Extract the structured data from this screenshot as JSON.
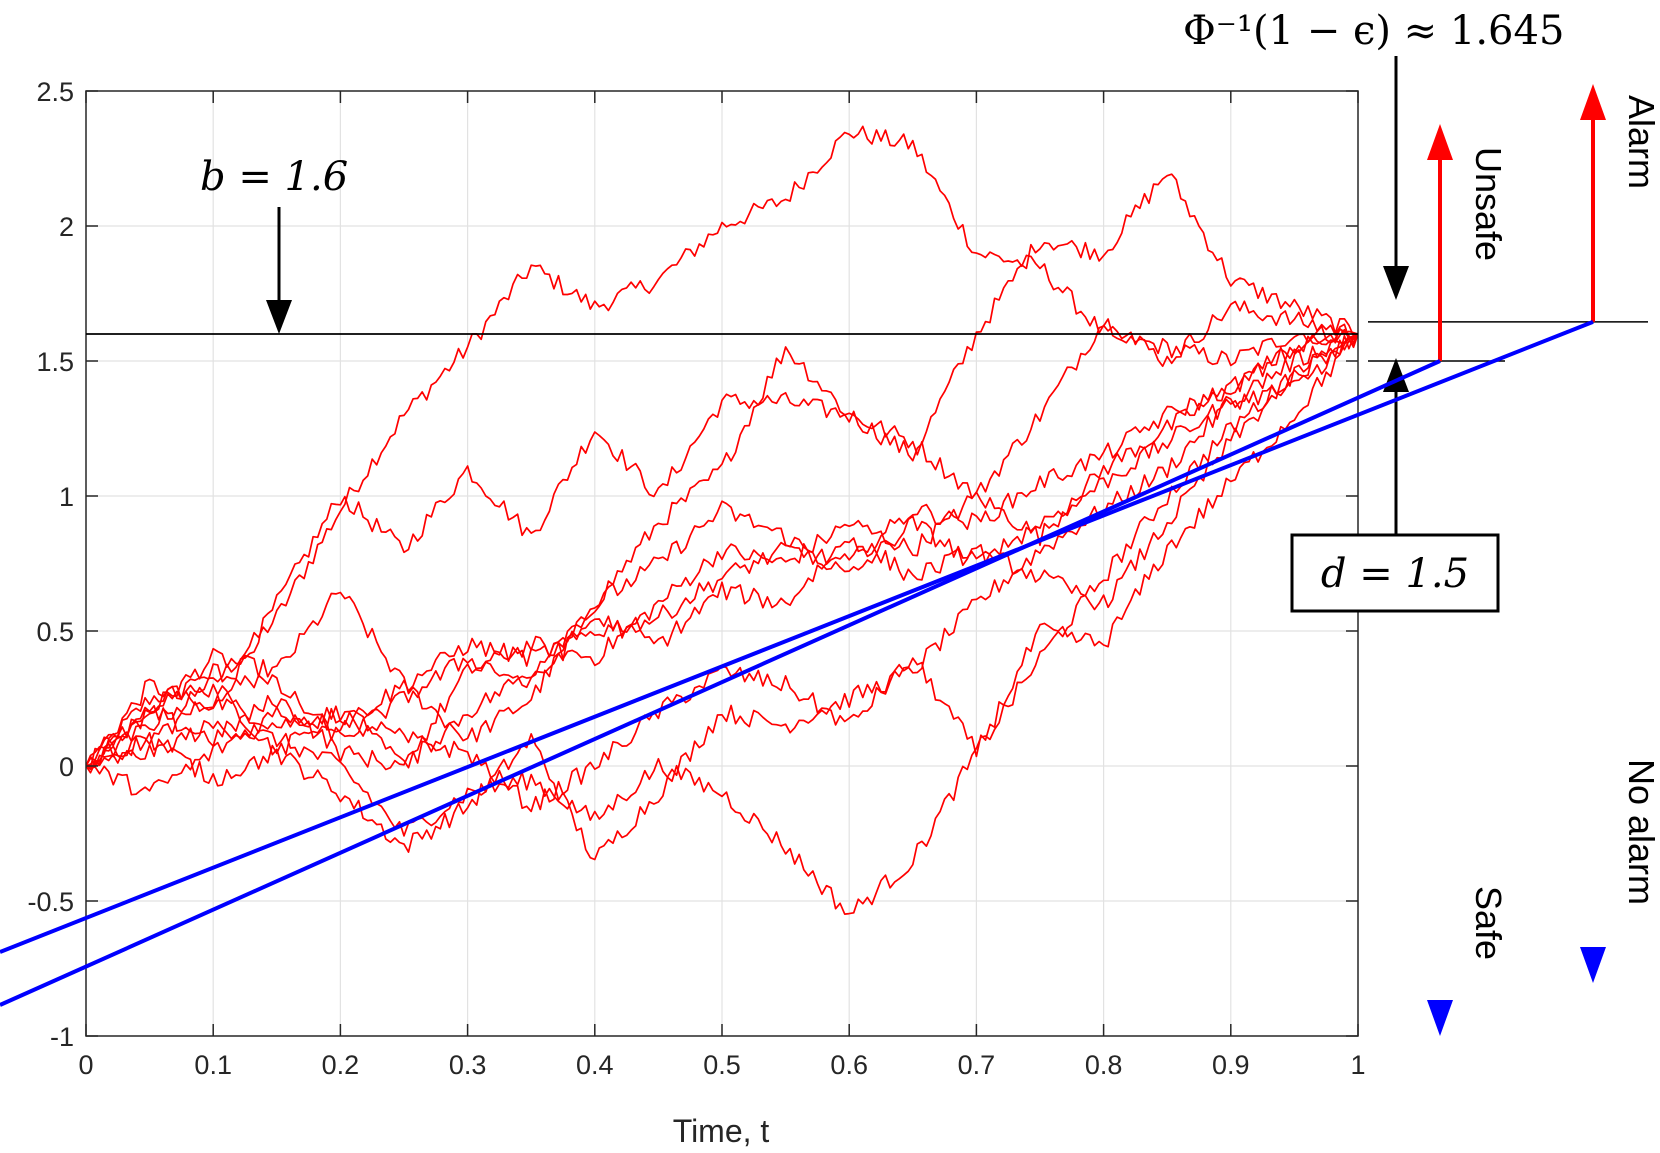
{
  "chart_data": {
    "type": "line",
    "title": "",
    "xlabel": "Time, t",
    "ylabel": "",
    "xlim": [
      0,
      1
    ],
    "ylim": [
      -1,
      2.5
    ],
    "grid": true,
    "x_ticks": [
      0,
      0.1,
      0.2,
      0.3,
      0.4,
      0.5,
      0.6,
      0.7,
      0.8,
      0.9,
      1
    ],
    "x_tick_labels": [
      "0",
      "0.1",
      "0.2",
      "0.3",
      "0.4",
      "0.5",
      "0.6",
      "0.7",
      "0.8",
      "0.9",
      "1"
    ],
    "y_ticks": [
      -1,
      -0.5,
      0,
      0.5,
      1,
      1.5,
      2,
      2.5
    ],
    "y_tick_labels": [
      "-1",
      "-0.5",
      "0",
      "0.5",
      "1",
      "1.5",
      "2",
      "2.5"
    ],
    "line_color": "#ff0000",
    "series": [
      {
        "x": [
          0,
          0.05,
          0.1,
          0.15,
          0.2,
          0.25,
          0.3,
          0.35,
          0.4,
          0.45,
          0.5,
          0.55,
          0.6,
          0.65,
          0.7,
          0.75,
          0.8,
          0.85,
          0.9,
          0.95,
          1
        ],
        "y": [
          0,
          0.25,
          0.3,
          0.55,
          0.95,
          1.3,
          1.55,
          1.85,
          1.7,
          1.8,
          2.0,
          2.1,
          2.35,
          2.3,
          1.9,
          1.85,
          1.6,
          1.55,
          1.5,
          1.6,
          1.6
        ]
      },
      {
        "x": [
          0,
          0.05,
          0.1,
          0.15,
          0.2,
          0.25,
          0.3,
          0.35,
          0.4,
          0.45,
          0.5,
          0.55,
          0.6,
          0.65,
          0.7,
          0.75,
          0.8,
          0.85,
          0.9,
          0.95,
          1
        ],
        "y": [
          0,
          0.3,
          0.2,
          0.6,
          1.0,
          0.8,
          1.1,
          0.85,
          1.25,
          1.0,
          1.35,
          1.35,
          1.3,
          1.15,
          1.6,
          1.95,
          1.9,
          2.2,
          1.8,
          1.7,
          1.6
        ]
      },
      {
        "x": [
          0,
          0.05,
          0.1,
          0.15,
          0.2,
          0.25,
          0.3,
          0.35,
          0.4,
          0.45,
          0.5,
          0.55,
          0.6,
          0.65,
          0.7,
          0.75,
          0.8,
          0.85,
          0.9,
          0.95,
          1
        ],
        "y": [
          0,
          0.2,
          0.4,
          0.35,
          0.65,
          0.3,
          0.1,
          0.25,
          0.6,
          0.9,
          1.1,
          1.55,
          1.3,
          1.2,
          1.0,
          1.3,
          1.65,
          1.5,
          1.7,
          1.65,
          1.6
        ]
      },
      {
        "x": [
          0,
          0.05,
          0.1,
          0.15,
          0.2,
          0.25,
          0.3,
          0.35,
          0.4,
          0.45,
          0.5,
          0.55,
          0.6,
          0.65,
          0.7,
          0.75,
          0.8,
          0.85,
          0.9,
          0.95,
          1
        ],
        "y": [
          0,
          0.1,
          0.25,
          0.15,
          0.2,
          0.0,
          0.35,
          0.45,
          0.4,
          0.6,
          0.8,
          0.75,
          0.9,
          0.8,
          1.0,
          0.85,
          1.1,
          1.25,
          1.4,
          1.55,
          1.6
        ]
      },
      {
        "x": [
          0,
          0.05,
          0.1,
          0.15,
          0.2,
          0.25,
          0.3,
          0.35,
          0.4,
          0.45,
          0.5,
          0.55,
          0.6,
          0.65,
          0.7,
          0.75,
          0.8,
          0.85,
          0.9,
          0.95,
          1
        ],
        "y": [
          0,
          0.15,
          0.3,
          0.05,
          -0.1,
          -0.3,
          -0.15,
          0.1,
          -0.35,
          -0.1,
          0.2,
          0.15,
          0.25,
          0.35,
          0.6,
          0.8,
          0.95,
          1.1,
          1.35,
          1.4,
          1.6
        ]
      },
      {
        "x": [
          0,
          0.05,
          0.1,
          0.15,
          0.2,
          0.25,
          0.3,
          0.35,
          0.4,
          0.45,
          0.5,
          0.55,
          0.6,
          0.65,
          0.7,
          0.75,
          0.8,
          0.85,
          0.9,
          0.95,
          1
        ],
        "y": [
          0,
          0.05,
          0.15,
          0.1,
          0.0,
          -0.25,
          -0.1,
          -0.05,
          -0.2,
          0.0,
          -0.1,
          -0.3,
          -0.55,
          -0.35,
          0.05,
          0.4,
          0.7,
          1.0,
          1.25,
          1.45,
          1.6
        ]
      },
      {
        "x": [
          0,
          0.05,
          0.1,
          0.15,
          0.2,
          0.25,
          0.3,
          0.35,
          0.4,
          0.45,
          0.5,
          0.55,
          0.6,
          0.65,
          0.7,
          0.75,
          0.8,
          0.85,
          0.9,
          0.95,
          1
        ],
        "y": [
          0,
          0.2,
          0.1,
          0.25,
          0.05,
          0.0,
          0.2,
          0.35,
          0.6,
          0.75,
          0.95,
          0.85,
          0.7,
          0.9,
          0.75,
          0.9,
          1.05,
          1.2,
          1.35,
          1.5,
          1.6
        ]
      },
      {
        "x": [
          0,
          0.05,
          0.1,
          0.15,
          0.2,
          0.25,
          0.3,
          0.35,
          0.4,
          0.45,
          0.5,
          0.55,
          0.6,
          0.65,
          0.7,
          0.75,
          0.8,
          0.85,
          0.9,
          0.95,
          1
        ],
        "y": [
          0,
          -0.1,
          0.05,
          0.2,
          0.15,
          0.3,
          0.45,
          0.4,
          0.5,
          0.55,
          0.7,
          0.8,
          0.75,
          0.95,
          0.9,
          1.05,
          1.15,
          1.3,
          1.4,
          1.55,
          1.6
        ]
      },
      {
        "x": [
          0,
          0.05,
          0.1,
          0.15,
          0.2,
          0.25,
          0.3,
          0.35,
          0.4,
          0.45,
          0.5,
          0.55,
          0.6,
          0.65,
          0.7,
          0.75,
          0.8,
          0.85,
          0.9,
          0.95,
          1
        ],
        "y": [
          0,
          0.1,
          -0.05,
          0.05,
          0.2,
          0.1,
          0.05,
          -0.15,
          0.0,
          0.2,
          0.35,
          0.3,
          0.15,
          0.4,
          0.05,
          0.5,
          0.45,
          0.8,
          1.05,
          1.3,
          1.6
        ]
      },
      {
        "x": [
          0,
          0.05,
          0.1,
          0.15,
          0.2,
          0.25,
          0.3,
          0.35,
          0.4,
          0.45,
          0.5,
          0.55,
          0.6,
          0.65,
          0.7,
          0.75,
          0.8,
          0.85,
          0.9,
          0.95,
          1
        ],
        "y": [
          0,
          0.2,
          0.35,
          0.3,
          0.1,
          0.25,
          0.4,
          0.3,
          0.55,
          0.45,
          0.65,
          0.6,
          0.85,
          0.7,
          0.8,
          0.7,
          0.6,
          0.9,
          1.2,
          1.45,
          1.6
        ]
      }
    ],
    "reference_lines": [
      {
        "label": "b = 1.6",
        "y": 1.6
      },
      {
        "label": "Φ⁻¹(1 − ϵ) ≈ 1.645",
        "y": 1.645
      },
      {
        "label": "d = 1.5",
        "y": 1.5
      }
    ]
  },
  "annotations": {
    "b_label": "b = 1.6",
    "phi_label": "Φ⁻¹(1 − ϵ) ≈ 1.645",
    "d_label": "d = 1.5"
  },
  "side_labels": {
    "unsafe": "Unsafe",
    "safe": "Safe",
    "alarm": "Alarm",
    "no_alarm": "No alarm"
  },
  "colors": {
    "paths": "#ff0000",
    "up_arrow": "#ff0000",
    "down_arrow": "#0000ff"
  }
}
